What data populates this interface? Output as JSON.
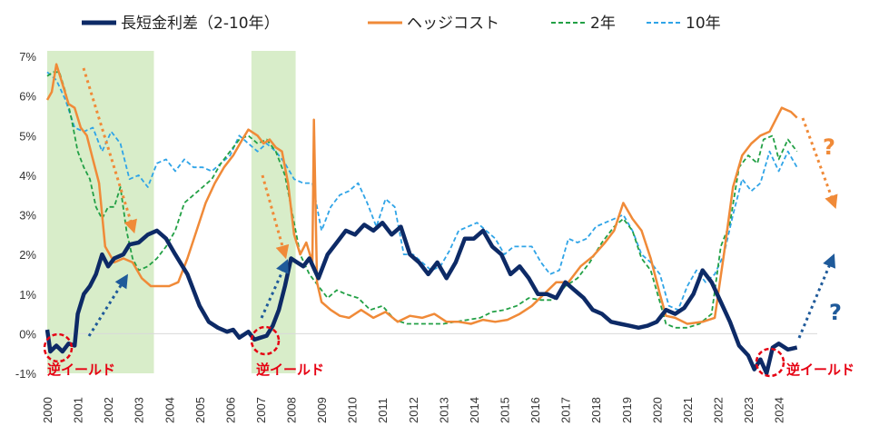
{
  "chart_data": {
    "type": "line",
    "title": "",
    "xlabel": "",
    "ylabel": "",
    "ylim": [
      -1,
      7
    ],
    "xlim": [
      2000,
      2025.8
    ],
    "y_ticks": [
      "-1%",
      "0%",
      "1%",
      "2%",
      "3%",
      "4%",
      "5%",
      "6%",
      "7%"
    ],
    "x_ticks": [
      "2000",
      "2001",
      "2002",
      "2003",
      "2004",
      "2005",
      "2006",
      "2007",
      "2008",
      "2009",
      "2010",
      "2011",
      "2012",
      "2013",
      "2014",
      "2015",
      "2016",
      "2017",
      "2018",
      "2019",
      "2020",
      "2021",
      "2022",
      "2023",
      "2024"
    ],
    "shaded_periods": [
      [
        2000.0,
        2003.5
      ],
      [
        2006.7,
        2008.15
      ]
    ],
    "legend": [
      "長短金利差（2-10年）",
      "ヘッジコスト",
      "2年",
      "10年"
    ],
    "series": [
      {
        "name": "長短金利差（2-10年）",
        "color": "#0d2a66",
        "style": "solid-thick",
        "x": [
          2000.0,
          2000.1,
          2000.3,
          2000.5,
          2000.7,
          2000.9,
          2001.0,
          2001.2,
          2001.4,
          2001.6,
          2001.8,
          2002.0,
          2002.2,
          2002.5,
          2002.7,
          2003.0,
          2003.3,
          2003.6,
          2003.9,
          2004.2,
          2004.6,
          2005.0,
          2005.3,
          2005.6,
          2005.9,
          2006.1,
          2006.3,
          2006.6,
          2006.8,
          2007.0,
          2007.2,
          2007.4,
          2007.6,
          2007.8,
          2008.0,
          2008.2,
          2008.4,
          2008.6,
          2008.9,
          2009.2,
          2009.5,
          2009.8,
          2010.1,
          2010.4,
          2010.7,
          2011.0,
          2011.3,
          2011.6,
          2011.9,
          2012.2,
          2012.5,
          2012.8,
          2013.1,
          2013.4,
          2013.7,
          2014.0,
          2014.3,
          2014.6,
          2014.9,
          2015.2,
          2015.5,
          2015.8,
          2016.1,
          2016.4,
          2016.7,
          2017.0,
          2017.3,
          2017.6,
          2017.9,
          2018.2,
          2018.5,
          2018.8,
          2019.1,
          2019.4,
          2019.7,
          2020.0,
          2020.3,
          2020.6,
          2020.9,
          2021.2,
          2021.5,
          2021.8,
          2022.1,
          2022.4,
          2022.7,
          2023.0,
          2023.2,
          2023.4,
          2023.6,
          2023.8,
          2024.0,
          2024.3,
          2024.6
        ],
        "values": [
          0.1,
          -0.45,
          -0.3,
          -0.45,
          -0.25,
          -0.3,
          0.5,
          1.0,
          1.2,
          1.5,
          2.0,
          1.7,
          1.9,
          2.0,
          2.25,
          2.3,
          2.5,
          2.6,
          2.4,
          2.0,
          1.5,
          0.7,
          0.3,
          0.15,
          0.05,
          0.1,
          -0.1,
          0.05,
          -0.15,
          -0.1,
          -0.05,
          0.2,
          0.6,
          1.2,
          1.9,
          1.8,
          1.7,
          1.9,
          1.4,
          2.0,
          2.3,
          2.6,
          2.5,
          2.75,
          2.6,
          2.8,
          2.5,
          2.7,
          2.0,
          1.8,
          1.5,
          1.8,
          1.4,
          1.8,
          2.4,
          2.4,
          2.6,
          2.2,
          2.0,
          1.5,
          1.7,
          1.4,
          1.0,
          1.0,
          0.9,
          1.3,
          1.1,
          0.9,
          0.6,
          0.5,
          0.3,
          0.25,
          0.2,
          0.15,
          0.2,
          0.3,
          0.6,
          0.5,
          0.65,
          1.0,
          1.6,
          1.3,
          0.8,
          0.3,
          -0.3,
          -0.55,
          -0.9,
          -0.65,
          -1.0,
          -0.35,
          -0.25,
          -0.4,
          -0.35
        ]
      },
      {
        "name": "ヘッジコスト",
        "color": "#f08a38",
        "style": "solid",
        "x": [
          2000.0,
          2000.15,
          2000.3,
          2000.5,
          2000.7,
          2000.9,
          2001.1,
          2001.3,
          2001.5,
          2001.7,
          2001.9,
          2002.2,
          2002.5,
          2002.8,
          2003.1,
          2003.4,
          2003.7,
          2004.0,
          2004.3,
          2004.6,
          2004.9,
          2005.2,
          2005.5,
          2005.8,
          2006.1,
          2006.4,
          2006.6,
          2006.9,
          2007.1,
          2007.3,
          2007.5,
          2007.7,
          2007.9,
          2008.1,
          2008.3,
          2008.5,
          2008.7,
          2008.75,
          2008.85,
          2009.0,
          2009.3,
          2009.6,
          2009.9,
          2010.3,
          2010.7,
          2011.1,
          2011.5,
          2011.9,
          2012.3,
          2012.7,
          2013.1,
          2013.5,
          2013.9,
          2014.3,
          2014.7,
          2015.1,
          2015.5,
          2015.9,
          2016.3,
          2016.7,
          2017.1,
          2017.5,
          2017.9,
          2018.3,
          2018.6,
          2018.9,
          2019.2,
          2019.5,
          2019.8,
          2020.1,
          2020.3,
          2020.6,
          2021.0,
          2021.5,
          2021.9,
          2022.2,
          2022.5,
          2022.8,
          2023.1,
          2023.4,
          2023.7,
          2023.9,
          2024.1,
          2024.4,
          2024.6
        ],
        "values": [
          5.9,
          6.1,
          6.8,
          6.3,
          5.8,
          5.7,
          5.2,
          5.0,
          4.4,
          3.8,
          2.2,
          1.8,
          1.9,
          1.8,
          1.4,
          1.2,
          1.2,
          1.2,
          1.3,
          1.9,
          2.6,
          3.3,
          3.8,
          4.2,
          4.5,
          4.9,
          5.15,
          5.0,
          4.8,
          4.9,
          4.7,
          4.6,
          3.8,
          2.5,
          2.0,
          2.3,
          1.8,
          5.4,
          1.3,
          0.8,
          0.6,
          0.45,
          0.4,
          0.6,
          0.4,
          0.55,
          0.3,
          0.45,
          0.4,
          0.5,
          0.3,
          0.3,
          0.25,
          0.35,
          0.3,
          0.35,
          0.5,
          0.7,
          1.0,
          1.3,
          1.3,
          1.7,
          1.95,
          2.3,
          2.6,
          3.3,
          2.9,
          2.6,
          1.9,
          1.0,
          0.45,
          0.4,
          0.25,
          0.3,
          0.4,
          2.0,
          3.7,
          4.5,
          4.8,
          5.0,
          5.1,
          5.4,
          5.7,
          5.6,
          5.45
        ]
      },
      {
        "name": "2年",
        "color": "#22a045",
        "style": "dashed",
        "x": [
          2000.0,
          2000.2,
          2000.4,
          2000.6,
          2000.8,
          2001.0,
          2001.2,
          2001.4,
          2001.6,
          2001.8,
          2002.0,
          2002.2,
          2002.4,
          2002.6,
          2002.8,
          2003.0,
          2003.3,
          2003.6,
          2003.9,
          2004.2,
          2004.5,
          2004.8,
          2005.1,
          2005.4,
          2005.7,
          2006.0,
          2006.3,
          2006.6,
          2006.9,
          2007.2,
          2007.5,
          2007.8,
          2008.0,
          2008.3,
          2008.6,
          2008.9,
          2009.2,
          2009.5,
          2009.8,
          2010.2,
          2010.6,
          2011.0,
          2011.4,
          2011.8,
          2012.2,
          2012.6,
          2013.0,
          2013.4,
          2013.8,
          2014.2,
          2014.6,
          2015.0,
          2015.4,
          2015.8,
          2016.2,
          2016.6,
          2017.0,
          2017.4,
          2017.8,
          2018.2,
          2018.6,
          2018.9,
          2019.2,
          2019.5,
          2019.8,
          2020.1,
          2020.3,
          2020.6,
          2021.0,
          2021.4,
          2021.8,
          2022.1,
          2022.4,
          2022.7,
          2023.0,
          2023.3,
          2023.5,
          2023.8,
          2024.0,
          2024.3,
          2024.6
        ],
        "values": [
          6.5,
          6.6,
          6.6,
          6.1,
          5.4,
          4.6,
          4.2,
          3.9,
          3.2,
          2.9,
          3.2,
          3.2,
          3.7,
          2.6,
          1.9,
          1.6,
          1.7,
          1.9,
          2.2,
          2.6,
          3.3,
          3.5,
          3.7,
          3.9,
          4.3,
          4.6,
          4.9,
          5.0,
          4.8,
          4.9,
          4.6,
          4.0,
          3.2,
          2.0,
          1.5,
          1.2,
          0.9,
          1.1,
          1.0,
          0.9,
          0.6,
          0.7,
          0.35,
          0.25,
          0.25,
          0.25,
          0.25,
          0.3,
          0.35,
          0.4,
          0.55,
          0.6,
          0.7,
          0.9,
          0.85,
          0.85,
          1.2,
          1.4,
          1.8,
          2.3,
          2.7,
          2.9,
          2.6,
          1.9,
          1.6,
          0.8,
          0.25,
          0.15,
          0.15,
          0.25,
          0.5,
          2.2,
          2.8,
          4.2,
          4.5,
          4.3,
          4.9,
          5.0,
          4.4,
          4.9,
          4.6
        ]
      },
      {
        "name": "10年",
        "color": "#2fa4e7",
        "style": "dashed",
        "x": [
          2000.0,
          2000.3,
          2000.6,
          2000.9,
          2001.2,
          2001.5,
          2001.8,
          2002.1,
          2002.4,
          2002.7,
          2003.0,
          2003.3,
          2003.6,
          2003.9,
          2004.2,
          2004.5,
          2004.8,
          2005.1,
          2005.4,
          2005.7,
          2006.0,
          2006.3,
          2006.6,
          2006.9,
          2007.2,
          2007.5,
          2007.8,
          2008.1,
          2008.4,
          2008.7,
          2009.0,
          2009.3,
          2009.6,
          2009.9,
          2010.2,
          2010.5,
          2010.8,
          2011.1,
          2011.4,
          2011.7,
          2012.0,
          2012.3,
          2012.6,
          2012.9,
          2013.2,
          2013.5,
          2013.8,
          2014.1,
          2014.4,
          2014.7,
          2015.0,
          2015.3,
          2015.6,
          2015.9,
          2016.2,
          2016.5,
          2016.8,
          2017.1,
          2017.4,
          2017.7,
          2018.0,
          2018.3,
          2018.6,
          2018.9,
          2019.2,
          2019.5,
          2019.8,
          2020.1,
          2020.4,
          2020.7,
          2021.0,
          2021.3,
          2021.6,
          2021.9,
          2022.2,
          2022.5,
          2022.8,
          2023.1,
          2023.4,
          2023.7,
          2024.0,
          2024.3,
          2024.6
        ],
        "values": [
          6.6,
          6.4,
          5.9,
          5.2,
          5.1,
          5.2,
          4.6,
          5.1,
          4.8,
          3.9,
          4.0,
          3.7,
          4.3,
          4.4,
          4.1,
          4.4,
          4.2,
          4.2,
          4.1,
          4.3,
          4.5,
          5.0,
          4.8,
          4.6,
          4.8,
          4.6,
          4.3,
          3.9,
          3.8,
          3.8,
          2.6,
          3.2,
          3.5,
          3.6,
          3.8,
          3.3,
          2.7,
          3.4,
          3.2,
          2.0,
          2.0,
          1.8,
          1.6,
          1.7,
          2.1,
          2.6,
          2.7,
          2.8,
          2.6,
          2.4,
          2.0,
          2.2,
          2.2,
          2.2,
          1.8,
          1.5,
          1.6,
          2.4,
          2.3,
          2.4,
          2.7,
          2.8,
          2.9,
          3.0,
          2.6,
          2.0,
          1.8,
          1.5,
          0.7,
          0.6,
          1.2,
          1.6,
          1.3,
          1.5,
          2.0,
          3.0,
          3.9,
          3.6,
          3.8,
          4.6,
          4.1,
          4.6,
          4.2
        ]
      }
    ],
    "annotations": {
      "inversion_label": "逆イールド",
      "question_mark": "?"
    }
  }
}
